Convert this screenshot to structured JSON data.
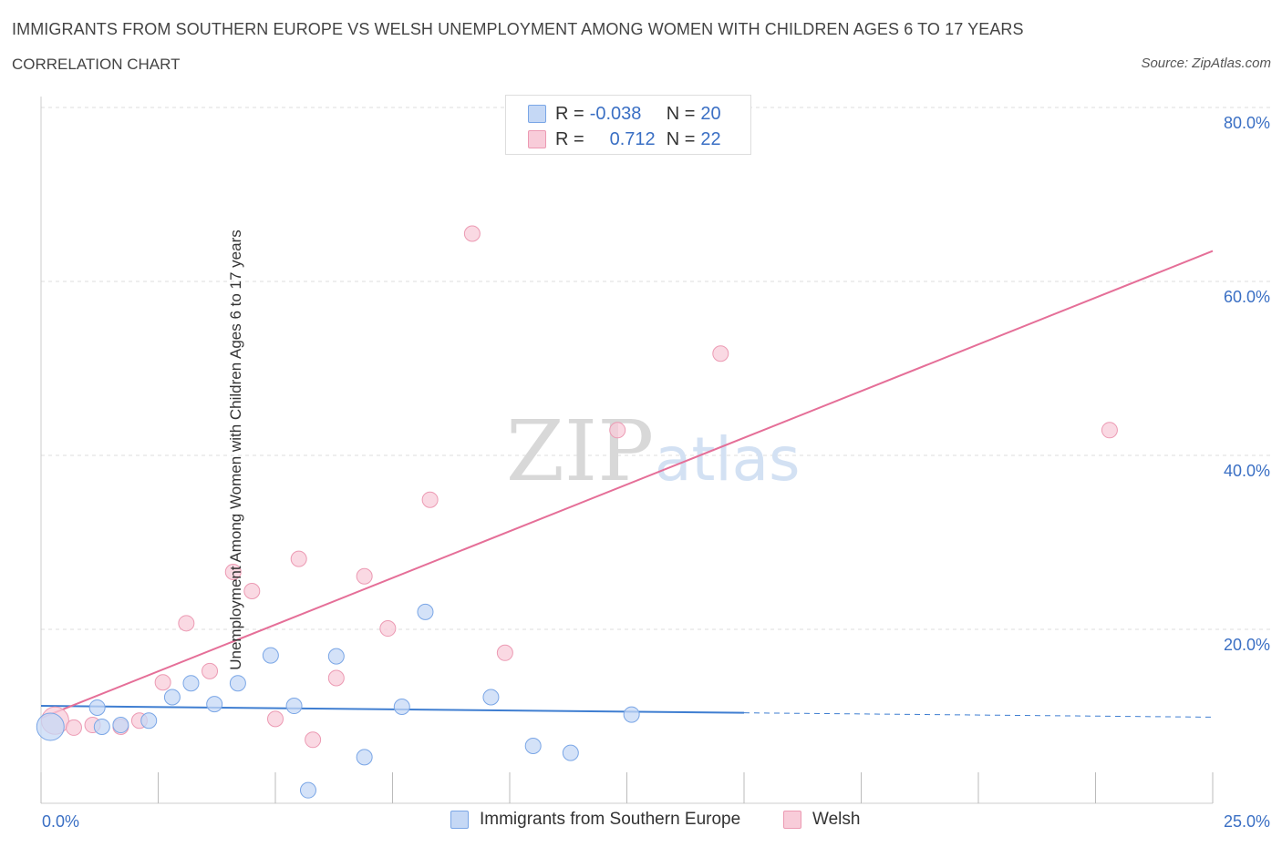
{
  "header": {
    "title": "IMMIGRANTS FROM SOUTHERN EUROPE VS WELSH UNEMPLOYMENT AMONG WOMEN WITH CHILDREN AGES 6 TO 17 YEARS",
    "subtitle": "CORRELATION CHART",
    "source": "Source: ZipAtlas.com"
  },
  "legend": {
    "series1": {
      "r_label": "R =",
      "r_value": "-0.038",
      "n_label": "N =",
      "n_value": "20"
    },
    "series2": {
      "r_label": "R =",
      "r_value": "0.712",
      "n_label": "N =",
      "n_value": "22"
    }
  },
  "colors": {
    "blue_fill": "#c5d8f5",
    "blue_stroke": "#7aa6e6",
    "blue_line": "#3f7ed1",
    "pink_fill": "#f8ccd9",
    "pink_stroke": "#ec9ab3",
    "pink_line": "#e56f98",
    "axis_label": "#3a6fc4",
    "grid": "#dddddd"
  },
  "watermark": {
    "zip": "ZIP",
    "atlas": "atlas"
  },
  "chart_data": {
    "type": "scatter",
    "title": "IMMIGRANTS FROM SOUTHERN EUROPE VS WELSH UNEMPLOYMENT AMONG WOMEN WITH CHILDREN AGES 6 TO 17 YEARS",
    "xlabel": "",
    "ylabel": "Unemployment Among Women with Children Ages 6 to 17 years",
    "xlim": [
      0,
      25
    ],
    "ylim": [
      0,
      80
    ],
    "x_tick_labels": [
      "0.0%",
      "25.0%"
    ],
    "y_ticks": [
      20,
      40,
      60,
      80
    ],
    "y_tick_labels": [
      "20.0%",
      "40.0%",
      "60.0%",
      "80.0%"
    ],
    "series": [
      {
        "name": "Immigrants from Southern Europe",
        "r": -0.038,
        "n": 20,
        "points": [
          {
            "x": 0.2,
            "y": 8.8,
            "size": "large"
          },
          {
            "x": 1.2,
            "y": 11.0
          },
          {
            "x": 1.3,
            "y": 8.8
          },
          {
            "x": 1.7,
            "y": 9.0
          },
          {
            "x": 2.3,
            "y": 9.5
          },
          {
            "x": 2.8,
            "y": 12.2
          },
          {
            "x": 3.2,
            "y": 13.8
          },
          {
            "x": 3.7,
            "y": 11.4
          },
          {
            "x": 4.2,
            "y": 13.8
          },
          {
            "x": 4.9,
            "y": 17.0
          },
          {
            "x": 5.4,
            "y": 11.2
          },
          {
            "x": 5.7,
            "y": 1.5
          },
          {
            "x": 6.3,
            "y": 16.9
          },
          {
            "x": 6.9,
            "y": 5.3
          },
          {
            "x": 7.7,
            "y": 11.1
          },
          {
            "x": 8.2,
            "y": 22.0
          },
          {
            "x": 9.6,
            "y": 12.2
          },
          {
            "x": 10.5,
            "y": 6.6
          },
          {
            "x": 11.3,
            "y": 5.8
          },
          {
            "x": 12.6,
            "y": 10.2
          }
        ],
        "trend": {
          "x0": 0,
          "y0": 11.2,
          "x1": 15.0,
          "y1": 10.4,
          "dash_to_x": 25,
          "dash_to_y": 9.9
        }
      },
      {
        "name": "Welsh",
        "r": 0.712,
        "n": 22,
        "points": [
          {
            "x": 0.3,
            "y": 9.5,
            "size": "large"
          },
          {
            "x": 0.7,
            "y": 8.7
          },
          {
            "x": 1.1,
            "y": 9.0
          },
          {
            "x": 1.7,
            "y": 8.8
          },
          {
            "x": 2.1,
            "y": 9.5
          },
          {
            "x": 2.6,
            "y": 13.9
          },
          {
            "x": 3.1,
            "y": 20.7
          },
          {
            "x": 3.6,
            "y": 15.2
          },
          {
            "x": 4.1,
            "y": 26.6
          },
          {
            "x": 4.5,
            "y": 24.4
          },
          {
            "x": 5.0,
            "y": 9.7
          },
          {
            "x": 5.5,
            "y": 28.1
          },
          {
            "x": 5.8,
            "y": 7.3
          },
          {
            "x": 6.3,
            "y": 14.4
          },
          {
            "x": 6.9,
            "y": 26.1
          },
          {
            "x": 7.4,
            "y": 20.1
          },
          {
            "x": 8.3,
            "y": 34.9
          },
          {
            "x": 9.2,
            "y": 65.5
          },
          {
            "x": 9.9,
            "y": 17.3
          },
          {
            "x": 12.3,
            "y": 42.9
          },
          {
            "x": 14.5,
            "y": 51.7
          },
          {
            "x": 22.8,
            "y": 42.9
          }
        ],
        "trend": {
          "x0": 0,
          "y0": 9.8,
          "x1": 25,
          "y1": 63.5
        }
      }
    ]
  },
  "bottom_legend": {
    "items": [
      "Immigrants from Southern Europe",
      "Welsh"
    ]
  }
}
